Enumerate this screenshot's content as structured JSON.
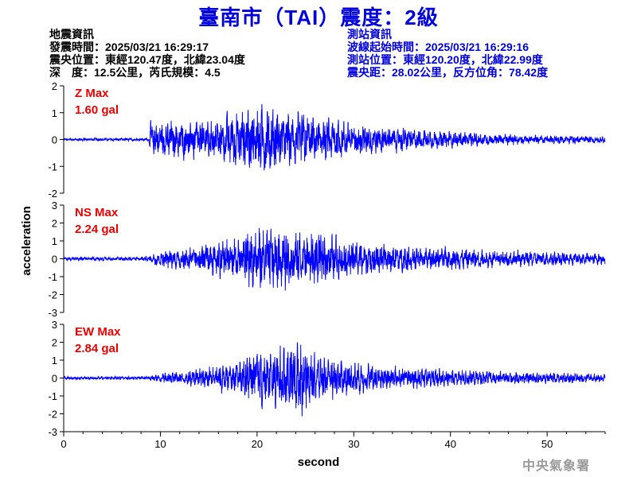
{
  "title": "臺南市（TAI）震度：2級",
  "event_info": {
    "heading": "地震資訊",
    "origin_time": "發震時間：2025/03/21 16:29:17",
    "epicenter": "震央位置：東經120.47度，北緯23.04度",
    "depth_magnitude": "深　度：12.5公里，芮氏規模：4.5"
  },
  "station_info": {
    "heading": "測站資訊",
    "wave_start": "波線起始時間：2025/03/21 16:29:16",
    "station_location": "測站位置：東經120.20度，北緯22.99度",
    "distance_azimuth": "震央距：28.02公里，反方位角：78.42度"
  },
  "watermark": "中央氣象署",
  "colors": {
    "trace": "#0000ff",
    "max_label": "#ee0000",
    "title": "#0000dd",
    "axis": "#000000"
  },
  "chart_data": {
    "type": "line",
    "xlabel": "second",
    "ylabel": "acceleration",
    "xlim": [
      0,
      56
    ],
    "x_ticks": [
      0,
      10,
      20,
      30,
      40,
      50
    ],
    "grid": false,
    "panels": [
      {
        "component": "Z",
        "max_label": "Z Max",
        "max_value": "1.60 gal",
        "ylim": [
          -2,
          2
        ],
        "y_ticks": [
          -2,
          -1,
          0,
          1,
          2
        ],
        "envelope": [
          {
            "t": 0,
            "amp": 0.06
          },
          {
            "t": 8.8,
            "amp": 0.06
          },
          {
            "t": 9.0,
            "amp": 0.75
          },
          {
            "t": 12,
            "amp": 0.85
          },
          {
            "t": 16,
            "amp": 0.9
          },
          {
            "t": 19,
            "amp": 1.3
          },
          {
            "t": 20,
            "amp": 1.55
          },
          {
            "t": 23,
            "amp": 1.2
          },
          {
            "t": 26,
            "amp": 1.0
          },
          {
            "t": 30,
            "amp": 0.7
          },
          {
            "t": 34,
            "amp": 0.55
          },
          {
            "t": 40,
            "amp": 0.35
          },
          {
            "t": 48,
            "amp": 0.2
          },
          {
            "t": 56,
            "amp": 0.15
          }
        ]
      },
      {
        "component": "NS",
        "max_label": "NS Max",
        "max_value": "2.24 gal",
        "ylim": [
          -3,
          3
        ],
        "y_ticks": [
          -3,
          -2,
          -1,
          0,
          1,
          2,
          3
        ],
        "envelope": [
          {
            "t": 0,
            "amp": 0.1
          },
          {
            "t": 8.8,
            "amp": 0.15
          },
          {
            "t": 9.5,
            "amp": 0.45
          },
          {
            "t": 14,
            "amp": 0.9
          },
          {
            "t": 18,
            "amp": 1.5
          },
          {
            "t": 20,
            "amp": 2.0
          },
          {
            "t": 23,
            "amp": 1.9
          },
          {
            "t": 26,
            "amp": 1.8
          },
          {
            "t": 28,
            "amp": 1.4
          },
          {
            "t": 34,
            "amp": 0.9
          },
          {
            "t": 40,
            "amp": 0.7
          },
          {
            "t": 46,
            "amp": 0.55
          },
          {
            "t": 56,
            "amp": 0.35
          }
        ]
      },
      {
        "component": "EW",
        "max_label": "EW Max",
        "max_value": "2.84 gal",
        "ylim": [
          -3,
          3
        ],
        "y_ticks": [
          -3,
          -2,
          -1,
          0,
          1,
          2,
          3
        ],
        "envelope": [
          {
            "t": 0,
            "amp": 0.1
          },
          {
            "t": 8.8,
            "amp": 0.12
          },
          {
            "t": 10,
            "amp": 0.3
          },
          {
            "t": 14,
            "amp": 0.6
          },
          {
            "t": 18,
            "amp": 1.1
          },
          {
            "t": 20,
            "amp": 1.9
          },
          {
            "t": 22,
            "amp": 1.8
          },
          {
            "t": 24,
            "amp": 2.5
          },
          {
            "t": 26,
            "amp": 1.5
          },
          {
            "t": 30,
            "amp": 1.0
          },
          {
            "t": 36,
            "amp": 0.7
          },
          {
            "t": 44,
            "amp": 0.45
          },
          {
            "t": 56,
            "amp": 0.3
          }
        ]
      }
    ]
  }
}
